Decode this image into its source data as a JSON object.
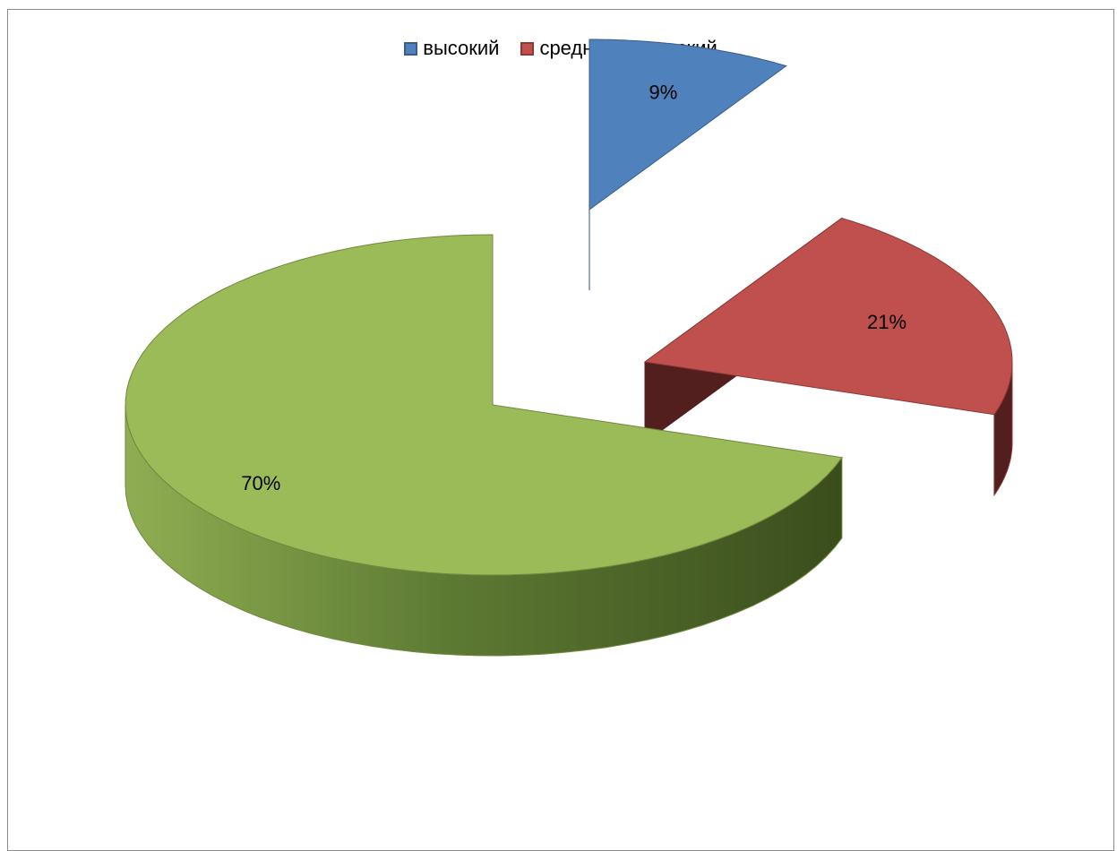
{
  "chart_data": {
    "type": "pie",
    "title": "",
    "legend_position": "top",
    "series": [
      {
        "name": "высокий",
        "value": 9,
        "label": "9%",
        "color": "#4F81BD",
        "side_color": "#2F4F78",
        "edge_color": "#385D8A",
        "exploded": true
      },
      {
        "name": "средний",
        "value": 21,
        "label": "21%",
        "color": "#C0504D",
        "side_color": "#521E1E",
        "edge_color": "#8C3836",
        "exploded": true
      },
      {
        "name": "низкий",
        "value": 70,
        "label": "70%",
        "color": "#9BBB59",
        "side_color": "#4F6B2A",
        "edge_color": "#71893F",
        "exploded": false
      }
    ]
  }
}
